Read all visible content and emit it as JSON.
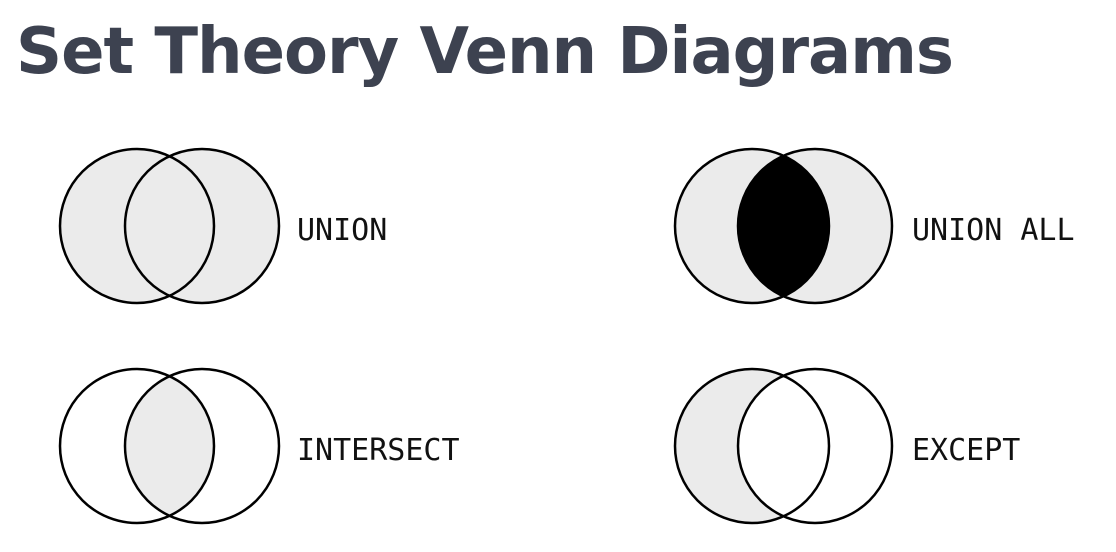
{
  "page": {
    "title": "Set Theory Venn Diagrams"
  },
  "colors": {
    "title": "#3d4250",
    "outline": "#000000",
    "region_shaded": "#ebebeb",
    "region_emphasis": "#000000",
    "region_empty": "#ffffff",
    "label": "#111111"
  },
  "diagrams": [
    {
      "label": "UNION",
      "left_only": "shaded",
      "overlap": "shaded",
      "right_only": "shaded"
    },
    {
      "label": "UNION ALL",
      "left_only": "shaded",
      "overlap": "emphasis",
      "right_only": "shaded"
    },
    {
      "label": "INTERSECT",
      "left_only": "empty",
      "overlap": "shaded",
      "right_only": "empty"
    },
    {
      "label": "EXCEPT",
      "left_only": "shaded",
      "overlap": "empty",
      "right_only": "empty"
    }
  ]
}
